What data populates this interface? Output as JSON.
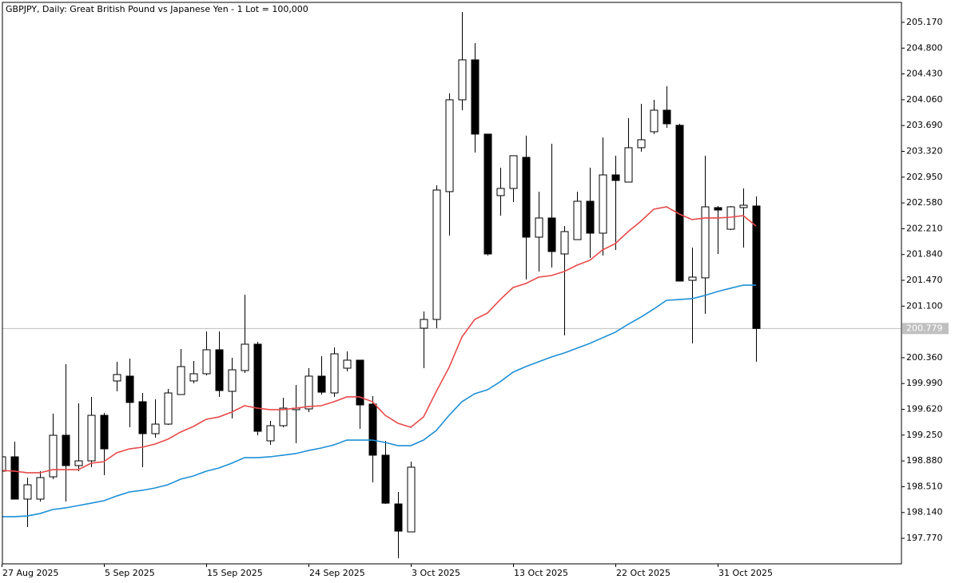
{
  "chart_data": {
    "type": "candlestick",
    "title": "GBPJPY, Daily:  Great British Pound vs Japanese Yen - 1 Lot = 100,000",
    "categories": [
      "27 Aug 2025",
      null,
      null,
      null,
      null,
      null,
      null,
      null,
      "5 Sep 2025",
      null,
      null,
      null,
      null,
      null,
      null,
      null,
      "15 Sep 2025",
      null,
      null,
      null,
      null,
      null,
      null,
      null,
      "24 Sep 2025",
      null,
      null,
      null,
      null,
      null,
      null,
      null,
      "3 Oct 2025",
      null,
      null,
      null,
      null,
      null,
      null,
      null,
      "13 Oct 2025",
      null,
      null,
      null,
      null,
      null,
      null,
      null,
      "22 Oct 2025",
      null,
      null,
      null,
      null,
      null,
      null,
      null,
      "31 Oct 2025",
      null,
      null,
      null
    ],
    "open": [
      198.733,
      198.939,
      198.332,
      198.332,
      198.652,
      199.248,
      198.813,
      198.881,
      199.534,
      200.027,
      200.096,
      199.729,
      199.271,
      199.408,
      199.832,
      200.027,
      200.13,
      200.474,
      199.878,
      200.176,
      200.554,
      199.168,
      199.385,
      199.615,
      199.626,
      200.096,
      199.855,
      200.21,
      200.325,
      199.695,
      198.962,
      198.263,
      197.862,
      200.783,
      200.909,
      202.742,
      204.059,
      204.632,
      203.567,
      202.685,
      202.788,
      203.234,
      202.089,
      202.364,
      201.848,
      202.054,
      202.604,
      202.146,
      202.982,
      202.879,
      203.372,
      203.601,
      203.91,
      203.693,
      201.47,
      201.505,
      202.513,
      202.203,
      202.513,
      202.536
    ],
    "high": [
      199.007,
      199.156,
      198.641,
      198.733,
      199.557,
      200.268,
      199.706,
      199.798,
      199.569,
      200.302,
      200.348,
      199.855,
      199.763,
      199.912,
      200.485,
      200.313,
      200.737,
      200.737,
      200.359,
      201.264,
      200.588,
      199.454,
      199.786,
      199.97,
      200.21,
      200.382,
      200.508,
      200.451,
      200.325,
      199.809,
      199.168,
      198.435,
      198.87,
      201.024,
      202.833,
      204.151,
      205.319,
      204.872,
      203.567,
      203.085,
      203.257,
      203.544,
      202.742,
      203.429,
      202.249,
      202.742,
      203.085,
      203.521,
      203.257,
      203.796,
      204.002,
      204.059,
      204.254,
      203.715,
      201.94,
      203.257,
      202.536,
      202.536,
      202.788,
      202.673
    ],
    "low": [
      198.641,
      198.332,
      197.931,
      198.297,
      198.618,
      198.297,
      198.733,
      198.79,
      198.675,
      199.878,
      199.363,
      198.79,
      199.214,
      199.397,
      199.832,
      199.993,
      200.107,
      199.798,
      199.489,
      200.142,
      199.248,
      199.111,
      199.363,
      199.133,
      199.58,
      199.832,
      199.798,
      200.164,
      199.34,
      198.572,
      198.263,
      197.484,
      197.862,
      200.21,
      200.783,
      202.112,
      203.91,
      203.303,
      201.825,
      202.398,
      202.593,
      201.482,
      201.596,
      201.654,
      200.68,
      202.054,
      201.791,
      201.825,
      201.906,
      202.879,
      203.315,
      203.567,
      203.658,
      201.459,
      200.565,
      200.989,
      201.848,
      202.192,
      201.94,
      200.302
    ],
    "close": [
      198.939,
      198.332,
      198.538,
      198.641,
      199.248,
      198.813,
      198.881,
      199.534,
      199.053,
      200.119,
      199.718,
      199.271,
      199.408,
      199.855,
      200.233,
      200.13,
      200.474,
      199.889,
      200.187,
      200.554,
      199.305,
      199.385,
      199.637,
      199.637,
      200.096,
      199.866,
      200.416,
      200.325,
      199.683,
      198.962,
      198.274,
      197.873,
      198.79,
      200.909,
      202.765,
      204.059,
      204.632,
      203.567,
      201.848,
      202.788,
      203.257,
      202.089,
      202.364,
      201.883,
      202.169,
      202.604,
      202.146,
      202.982,
      202.902,
      203.372,
      203.486,
      203.91,
      203.715,
      201.459,
      201.516,
      202.524,
      202.478,
      202.524,
      202.547,
      200.779
    ],
    "up_color": "#ffffff",
    "down_color": "#000000",
    "series": [
      {
        "color": "#e84a4a",
        "values": [
          198.744,
          198.733,
          198.71,
          198.71,
          198.755,
          198.755,
          198.755,
          198.847,
          198.87,
          198.996,
          199.053,
          199.076,
          199.122,
          199.191,
          199.294,
          199.374,
          199.477,
          199.511,
          199.58,
          199.672,
          199.637,
          199.615,
          199.615,
          199.637,
          199.66,
          199.672,
          199.729,
          199.798,
          199.798,
          199.729,
          199.534,
          199.42,
          199.363,
          199.511,
          199.878,
          200.222,
          200.657,
          200.909,
          201.001,
          201.195,
          201.367,
          201.424,
          201.516,
          201.539,
          201.596,
          201.688,
          201.757,
          201.906,
          201.997,
          202.169,
          202.318,
          202.49,
          202.524,
          202.421,
          202.341,
          202.364,
          202.364,
          202.375,
          202.398,
          202.249
        ]
      },
      {
        "color": "#1e90d6",
        "values": [
          198.08,
          198.08,
          198.091,
          198.125,
          198.183,
          198.206,
          198.24,
          198.274,
          198.309,
          198.377,
          198.435,
          198.458,
          198.492,
          198.538,
          198.618,
          198.664,
          198.733,
          198.778,
          198.847,
          198.927,
          198.927,
          198.939,
          198.962,
          198.985,
          199.03,
          199.065,
          199.111,
          199.179,
          199.179,
          199.179,
          199.145,
          199.099,
          199.099,
          199.179,
          199.317,
          199.534,
          199.729,
          199.844,
          199.901,
          200.016,
          200.153,
          200.233,
          200.302,
          200.371,
          200.428,
          200.497,
          200.565,
          200.646,
          200.726,
          200.84,
          200.943,
          201.058,
          201.184,
          201.195,
          201.207,
          201.253,
          201.31,
          201.356,
          201.401,
          201.401
        ]
      }
    ],
    "current_price": 200.779,
    "ylim": [
      197.404,
      205.456
    ],
    "yticks": [
      {
        "value": 205.17,
        "label": "205.170"
      },
      {
        "value": 204.8,
        "label": "204.800"
      },
      {
        "value": 204.43,
        "label": "204.430"
      },
      {
        "value": 204.06,
        "label": "204.060"
      },
      {
        "value": 203.69,
        "label": "203.690"
      },
      {
        "value": 203.32,
        "label": "203.320"
      },
      {
        "value": 202.95,
        "label": "202.950"
      },
      {
        "value": 202.58,
        "label": "202.580"
      },
      {
        "value": 202.21,
        "label": "202.210"
      },
      {
        "value": 201.84,
        "label": "201.840"
      },
      {
        "value": 201.47,
        "label": "201.470"
      },
      {
        "value": 201.1,
        "label": "201.100"
      },
      {
        "value": 200.36,
        "label": "200.360"
      },
      {
        "value": 199.99,
        "label": "199.990"
      },
      {
        "value": 199.62,
        "label": "199.620"
      },
      {
        "value": 199.25,
        "label": "199.250"
      },
      {
        "value": 198.88,
        "label": "198.880"
      },
      {
        "value": 198.51,
        "label": "198.510"
      },
      {
        "value": 198.14,
        "label": "198.140"
      },
      {
        "value": 197.77,
        "label": "197.770"
      }
    ]
  }
}
